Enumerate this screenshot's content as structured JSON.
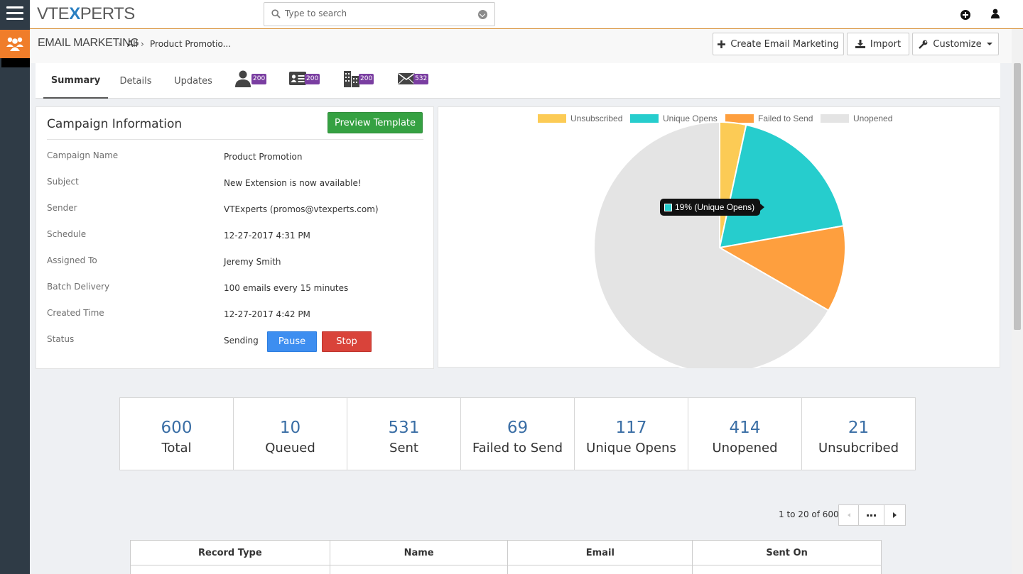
{
  "brand": {
    "logo_pre": "VTE",
    "logo_x": "X",
    "logo_post": "PERTS"
  },
  "search": {
    "placeholder": "Type to search"
  },
  "breadcrumb": {
    "module": "EMAIL MARKETING",
    "all": "All",
    "record": "Product Promotio..."
  },
  "toolbar": {
    "create_label": "Create Email Marketing",
    "import_label": "Import",
    "customize_label": "Customize"
  },
  "tabs": [
    {
      "label": "Summary",
      "active": true
    },
    {
      "label": "Details",
      "active": false
    },
    {
      "label": "Updates",
      "active": false
    }
  ],
  "related": [
    {
      "icon": "contact-icon",
      "count": "200"
    },
    {
      "icon": "lead-card-icon",
      "count": "200"
    },
    {
      "icon": "organization-icon",
      "count": "200"
    },
    {
      "icon": "email-envelope-icon",
      "count": "532"
    }
  ],
  "campaign": {
    "title": "Campaign Information",
    "preview_label": "Preview Template",
    "fields": [
      {
        "label": "Campaign Name",
        "value": "Product Promotion"
      },
      {
        "label": "Subject",
        "value": "New Extension is now available!"
      },
      {
        "label": "Sender",
        "value": "VTExperts (promos@vtexperts.com)"
      },
      {
        "label": "Schedule",
        "value": "12-27-2017 4:31 PM"
      },
      {
        "label": "Assigned To",
        "value": "Jeremy Smith"
      },
      {
        "label": "Batch Delivery",
        "value": "100 emails every 15 minutes"
      },
      {
        "label": "Created Time",
        "value": "12-27-2017 4:42 PM"
      },
      {
        "label": "Status",
        "value": "Sending"
      }
    ],
    "pause_label": "Pause",
    "stop_label": "Stop"
  },
  "chart_data": {
    "type": "pie",
    "legend_position": "top",
    "slices": [
      {
        "name": "Unsubscribed",
        "value": 21,
        "color": "#fccb55"
      },
      {
        "name": "Unique Opens",
        "value": 117,
        "color": "#26cdcd"
      },
      {
        "name": "Failed to Send",
        "value": 69,
        "color": "#fe9f3e"
      },
      {
        "name": "Unopened",
        "value": 414,
        "color": "#e4e4e4"
      }
    ],
    "tooltip": "19% (Unique Opens)"
  },
  "stats": [
    {
      "value": "600",
      "label": "Total"
    },
    {
      "value": "10",
      "label": "Queued"
    },
    {
      "value": "531",
      "label": "Sent"
    },
    {
      "value": "69",
      "label": "Failed to Send"
    },
    {
      "value": "117",
      "label": "Unique Opens"
    },
    {
      "value": "414",
      "label": "Unopened"
    },
    {
      "value": "21",
      "label": "Unsubcribed"
    }
  ],
  "pagination": {
    "info": "1 to 20 of 600"
  },
  "table": {
    "columns": [
      "Record Type",
      "Name",
      "Email",
      "Sent On"
    ]
  }
}
